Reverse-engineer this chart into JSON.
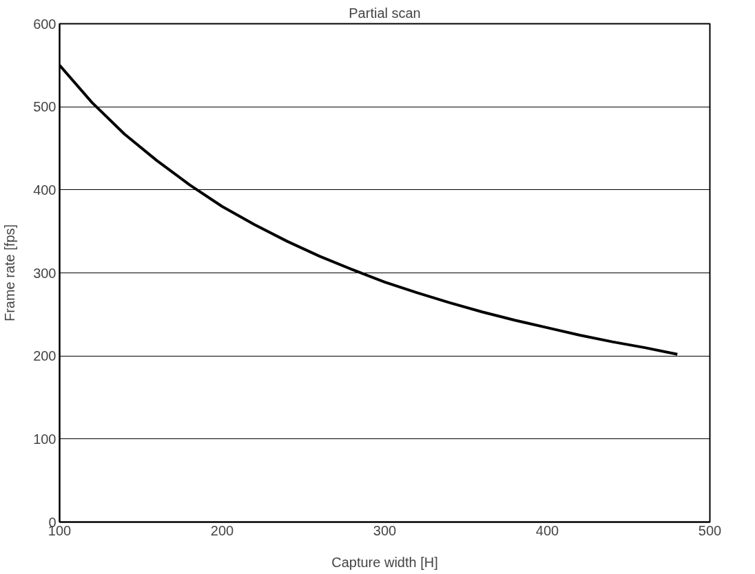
{
  "chart_data": {
    "type": "line",
    "title": "Partial scan",
    "xlabel": "Capture width [H]",
    "ylabel": "Frame rate [fps]",
    "x": [
      100,
      120,
      140,
      160,
      180,
      200,
      220,
      240,
      260,
      280,
      300,
      320,
      340,
      360,
      380,
      400,
      420,
      440,
      460,
      480
    ],
    "series": [
      {
        "color": "#000000",
        "values": [
          550,
          505,
          467,
          435,
          406,
          380,
          358,
          338,
          320,
          304,
          289,
          276,
          264,
          253,
          243,
          234,
          225,
          217,
          210,
          202
        ]
      }
    ],
    "xlim": [
      100,
      500
    ],
    "ylim": [
      0,
      600
    ],
    "xticks": [
      100,
      200,
      300,
      400,
      500
    ],
    "yticks": [
      0,
      100,
      200,
      300,
      400,
      500,
      600
    ],
    "grid": "y",
    "line_style": "solid"
  }
}
